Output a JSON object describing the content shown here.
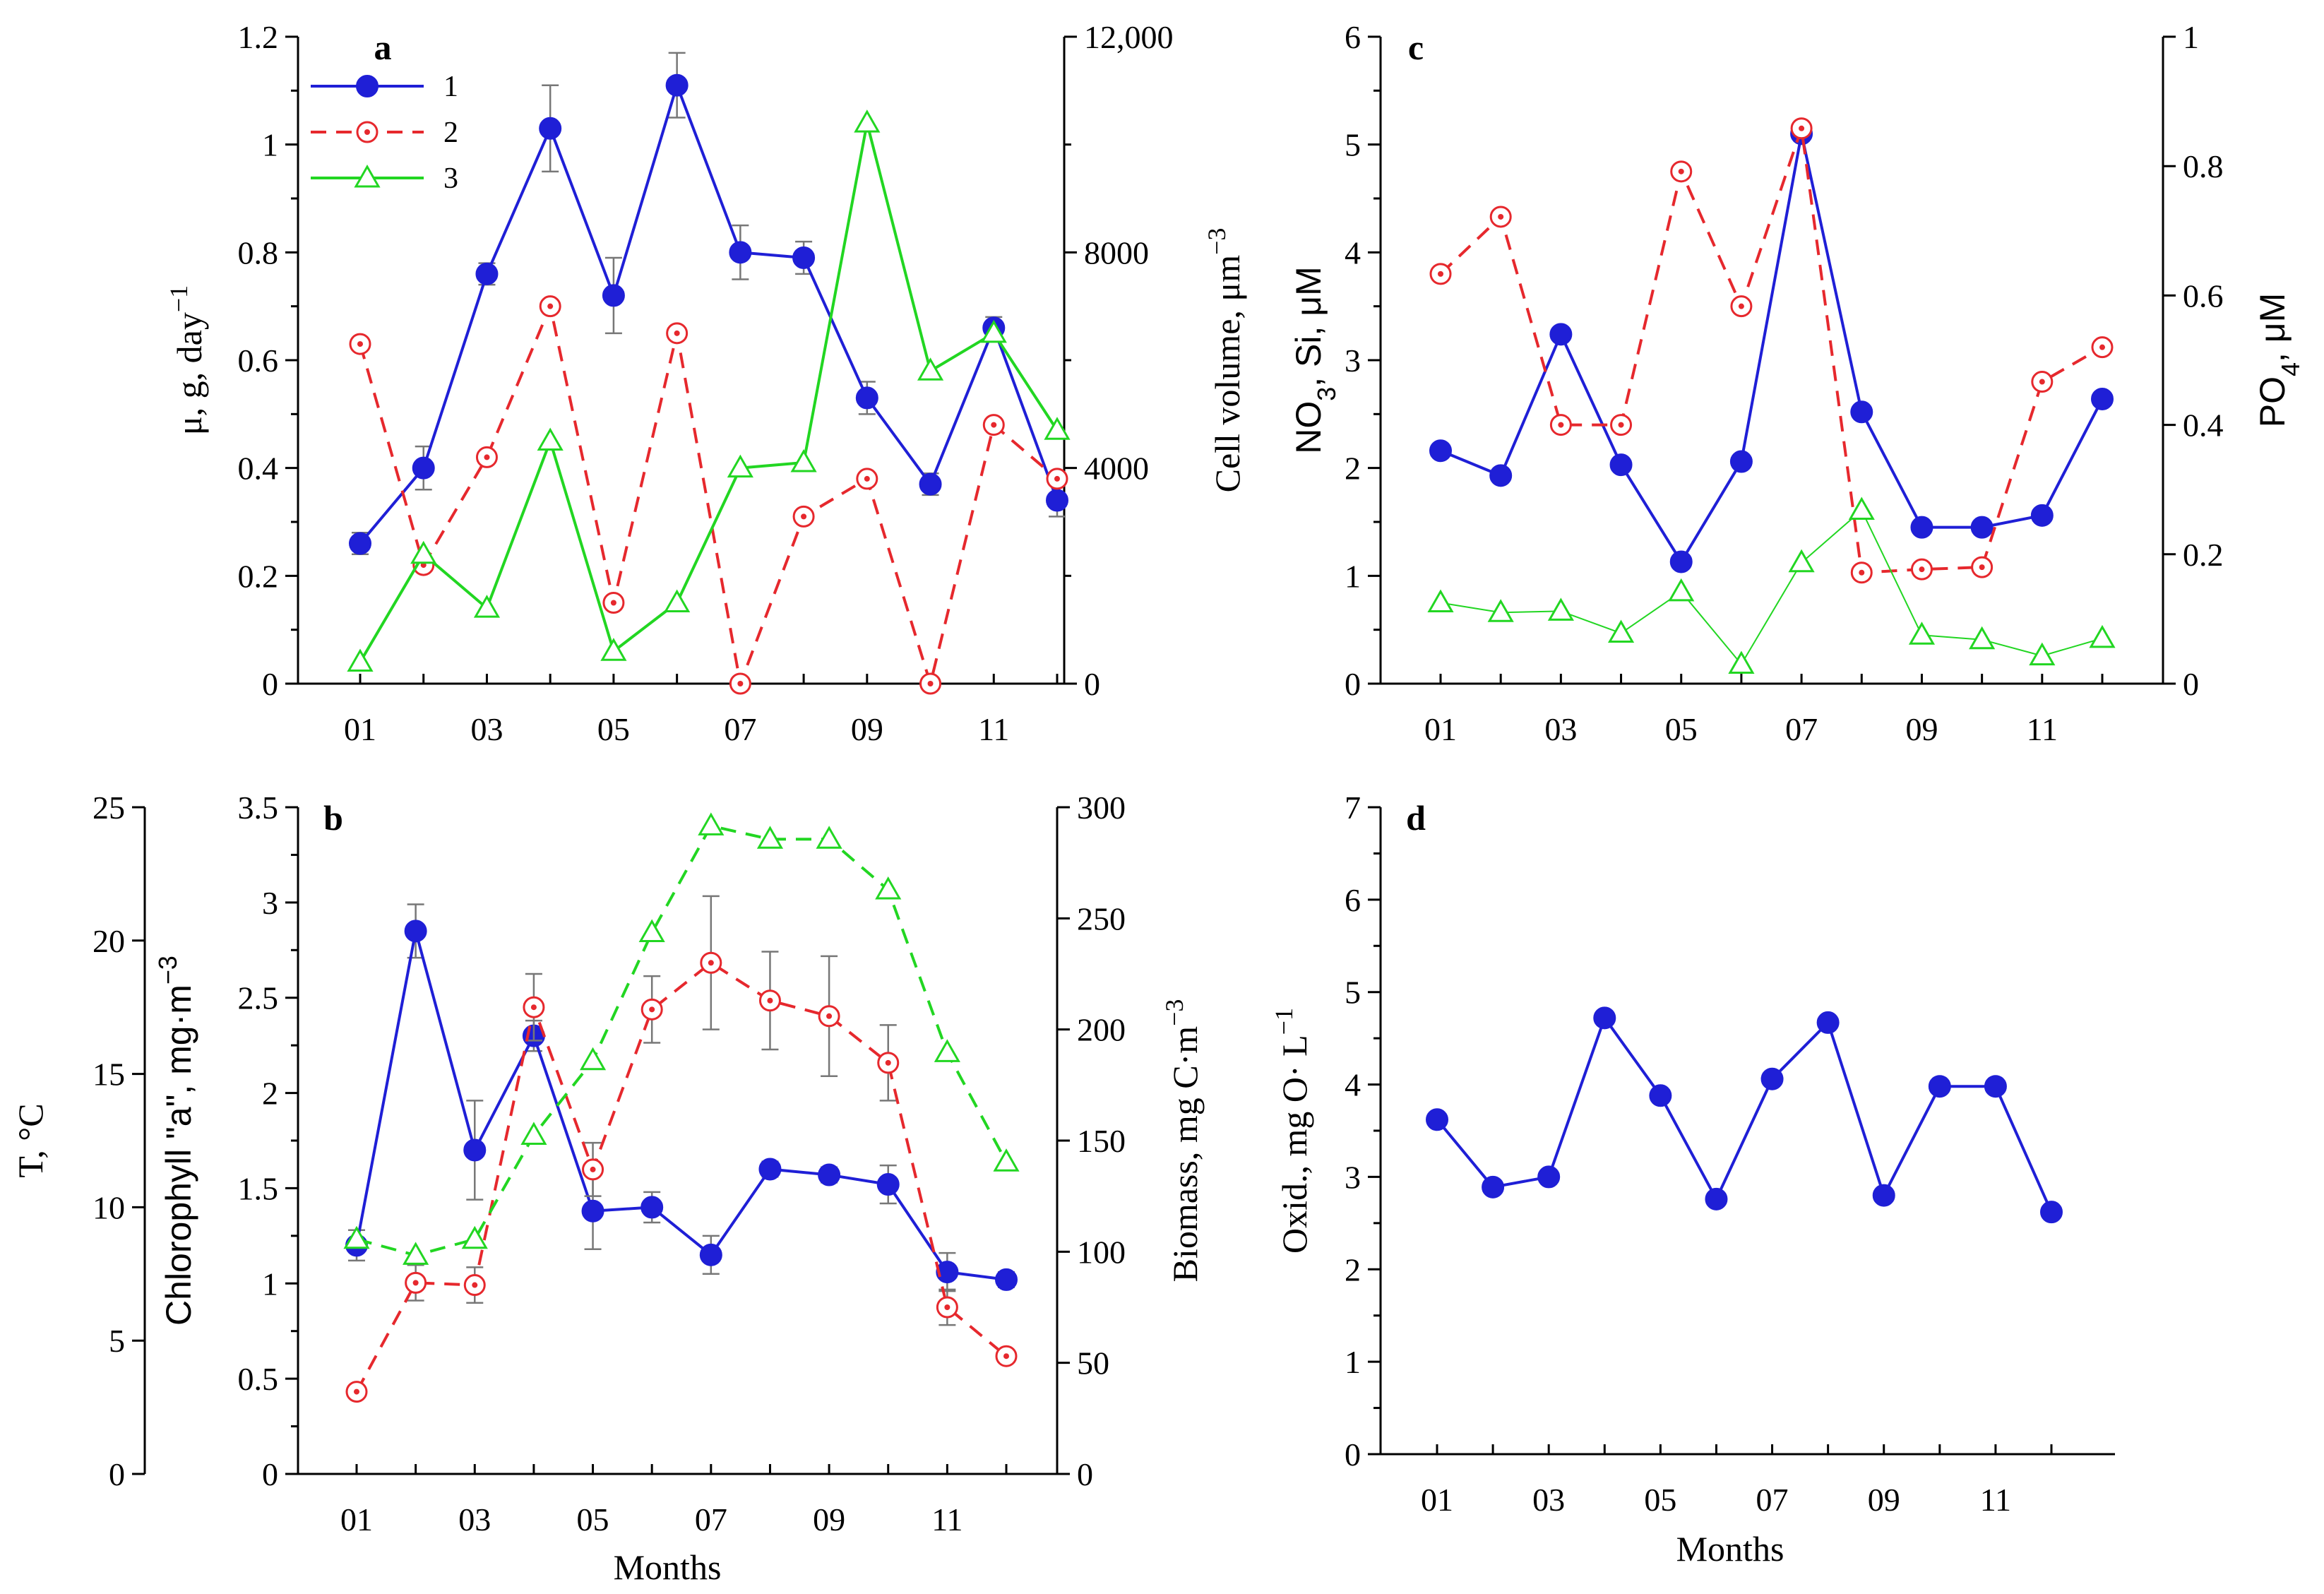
{
  "figure": {
    "x_title": "Months"
  },
  "chart_data": [
    {
      "id": "a",
      "type": "line",
      "panel_label": "a",
      "categories": [
        "01",
        "02",
        "03",
        "04",
        "05",
        "06",
        "07",
        "08",
        "09",
        "10",
        "11",
        "12"
      ],
      "x_tick_labels": [
        "01",
        "03",
        "05",
        "07",
        "09",
        "11"
      ],
      "ylabel_left": "μ, g, day",
      "ylabel_left_sup": "−1",
      "ylabel_right": "Cell volume, μm",
      "ylabel_right_sup": "−3",
      "ylim_left": [
        0,
        1.2
      ],
      "ylim_right": [
        0,
        12000
      ],
      "yticks_left": [
        "0",
        "0.2",
        "0.4",
        "0.6",
        "0.8",
        "1",
        "1.2"
      ],
      "yticks_right": [
        "0",
        "4000",
        "8000",
        "12,000"
      ],
      "yticks_right_values": [
        0,
        4000,
        8000,
        12000
      ],
      "legend": [
        "1",
        "2",
        "3"
      ],
      "series": [
        {
          "name": "1",
          "axis": "left",
          "color": "#1f1fd6",
          "marker": "filled-circle",
          "dash": "solid",
          "values": [
            0.26,
            0.4,
            0.76,
            1.03,
            0.72,
            1.11,
            0.8,
            0.79,
            0.53,
            0.37,
            0.66,
            0.34
          ],
          "errors": [
            0.02,
            0.04,
            0.02,
            0.08,
            0.07,
            0.06,
            0.05,
            0.03,
            0.03,
            0.02,
            0.02,
            0.03
          ]
        },
        {
          "name": "2",
          "axis": "left",
          "color": "#e6282d",
          "marker": "open-circle",
          "dash": "dashed",
          "values": [
            0.63,
            0.22,
            0.42,
            0.7,
            0.15,
            0.65,
            0.0,
            0.31,
            0.38,
            0.0,
            0.48,
            0.38
          ]
        },
        {
          "name": "3",
          "axis": "left",
          "color": "#22d622",
          "marker": "open-triangle",
          "dash": "solid",
          "values": [
            0.04,
            0.24,
            0.14,
            0.45,
            0.06,
            0.15,
            0.4,
            0.41,
            1.04,
            0.58,
            0.65,
            0.47
          ]
        }
      ]
    },
    {
      "id": "b",
      "type": "line",
      "panel_label": "b",
      "categories": [
        "01",
        "02",
        "03",
        "04",
        "05",
        "06",
        "07",
        "08",
        "09",
        "10",
        "11",
        "12"
      ],
      "x_tick_labels": [
        "01",
        "03",
        "05",
        "07",
        "09",
        "11"
      ],
      "xlabel": "Months",
      "ylabel_outer": "T, °C",
      "ylabel_left": "Chlorophyll \"a\", mg·m",
      "ylabel_left_sup": "−3",
      "ylabel_right": "Biomass, mg C·m",
      "ylabel_right_sup": "−3",
      "ylim_outer": [
        0,
        25
      ],
      "ylim_left": [
        0,
        3.5
      ],
      "ylim_right": [
        0,
        300
      ],
      "yticks_outer": [
        "0",
        "5",
        "10",
        "15",
        "20",
        "25"
      ],
      "yticks_left": [
        "0",
        "0.5",
        "1",
        "1.5",
        "2",
        "2.5",
        "3",
        "3.5"
      ],
      "yticks_right": [
        "0",
        "50",
        "100",
        "150",
        "200",
        "250",
        "300"
      ],
      "series": [
        {
          "name": "Chlorophyll a",
          "axis": "left",
          "color": "#1f1fd6",
          "marker": "filled-circle",
          "dash": "solid",
          "values": [
            1.2,
            2.85,
            1.7,
            2.3,
            1.38,
            1.4,
            1.15,
            1.6,
            1.57,
            1.52,
            1.06,
            1.02
          ],
          "errors": [
            0.08,
            0.14,
            0.26,
            0.08,
            0.2,
            0.08,
            0.1,
            0.04,
            0.04,
            0.1,
            0.1,
            0.04
          ]
        },
        {
          "name": "Biomass",
          "axis": "right",
          "color": "#e6282d",
          "marker": "open-circle",
          "dash": "dashed",
          "values": [
            37,
            86,
            85,
            210,
            137,
            209,
            230,
            213,
            206,
            185,
            75,
            53
          ],
          "errors": [
            0,
            8,
            8,
            15,
            12,
            15,
            30,
            22,
            27,
            17,
            8,
            0
          ]
        },
        {
          "name": "Temperature",
          "axis": "outer",
          "color": "#22d622",
          "marker": "open-triangle",
          "dash": "dashed",
          "values": [
            8.8,
            8.2,
            8.8,
            12.7,
            15.5,
            20.3,
            24.3,
            23.8,
            23.8,
            21.9,
            15.8,
            11.7
          ]
        }
      ]
    },
    {
      "id": "c",
      "type": "line",
      "panel_label": "c",
      "categories": [
        "01",
        "02",
        "03",
        "04",
        "05",
        "06",
        "07",
        "08",
        "09",
        "10",
        "11",
        "12"
      ],
      "x_tick_labels": [
        "01",
        "03",
        "05",
        "07",
        "09",
        "11"
      ],
      "ylabel_left": "NO",
      "ylabel_left_sub": "3",
      "ylabel_left_rest": ", Si, μM",
      "ylabel_right": "PO",
      "ylabel_right_sub": "4",
      "ylabel_right_rest": ", μM",
      "ylim_left": [
        0,
        6
      ],
      "ylim_right": [
        0,
        1
      ],
      "yticks_left": [
        "0",
        "1",
        "2",
        "3",
        "4",
        "5",
        "6"
      ],
      "yticks_right": [
        "0",
        "0.2",
        "0.4",
        "0.6",
        "0.8",
        "1"
      ],
      "series": [
        {
          "name": "NO3",
          "axis": "left",
          "color": "#1f1fd6",
          "marker": "filled-circle",
          "dash": "solid",
          "values": [
            2.16,
            1.93,
            3.24,
            2.03,
            1.13,
            2.06,
            5.1,
            2.52,
            1.45,
            1.45,
            1.56,
            2.64
          ]
        },
        {
          "name": "Si",
          "axis": "left",
          "color": "#e6282d",
          "marker": "open-circle",
          "dash": "dashed",
          "values": [
            3.8,
            4.33,
            2.4,
            2.4,
            4.75,
            3.5,
            5.15,
            1.03,
            1.06,
            1.08,
            2.8,
            3.12
          ]
        },
        {
          "name": "PO4",
          "axis": "right",
          "color": "#22d622",
          "marker": "open-triangle",
          "dash": "thin",
          "values": [
            0.125,
            0.11,
            0.112,
            0.078,
            0.142,
            0.03,
            0.187,
            0.268,
            0.075,
            0.068,
            0.043,
            0.07
          ]
        }
      ]
    },
    {
      "id": "d",
      "type": "line",
      "panel_label": "d",
      "categories": [
        "01",
        "02",
        "03",
        "04",
        "05",
        "06",
        "07",
        "08",
        "09",
        "10",
        "11",
        "12"
      ],
      "x_tick_labels": [
        "01",
        "03",
        "05",
        "07",
        "09",
        "11"
      ],
      "xlabel": "Months",
      "ylabel_left": "Oxid., mg O· L",
      "ylabel_left_sup": "−1",
      "ylim_left": [
        0,
        7
      ],
      "yticks_left": [
        "0",
        "1",
        "2",
        "3",
        "4",
        "5",
        "6",
        "7"
      ],
      "series": [
        {
          "name": "Oxidability",
          "axis": "left",
          "color": "#1f1fd6",
          "marker": "filled-circle",
          "dash": "solid",
          "values": [
            3.62,
            2.89,
            3.0,
            4.72,
            3.88,
            2.76,
            4.06,
            4.67,
            2.8,
            3.98,
            3.98,
            2.62
          ]
        }
      ]
    }
  ]
}
